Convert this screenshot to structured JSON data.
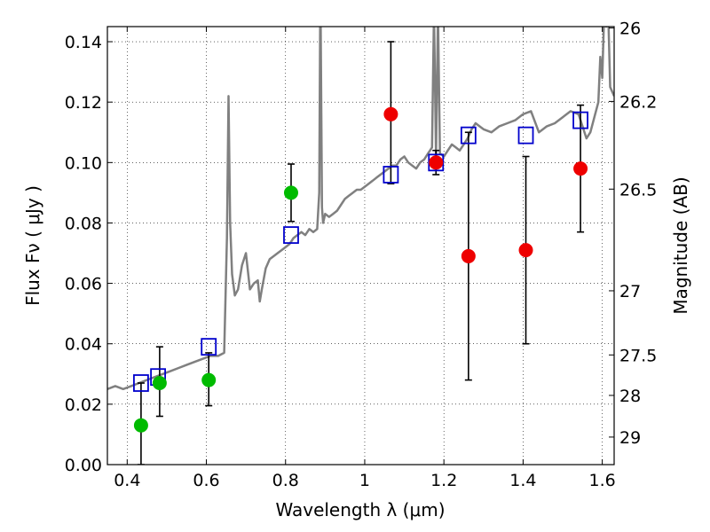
{
  "chart_data": {
    "type": "scatter",
    "xlabel": "Wavelength  λ (μm)",
    "ylabel": "Flux  Fν ( μJy )",
    "y2label": "Magnitude (AB)",
    "xlim": [
      0.35,
      1.63
    ],
    "ylim": [
      0.0,
      0.145
    ],
    "grid": true,
    "x_ticks": [
      0.4,
      0.6,
      0.8,
      1.0,
      1.2,
      1.4,
      1.6
    ],
    "x_tick_labels": [
      "0.4",
      "0.6",
      "0.8",
      "1",
      "1.2",
      "1.4",
      "1.6"
    ],
    "y_ticks": [
      0.0,
      0.02,
      0.04,
      0.06,
      0.08,
      0.1,
      0.12,
      0.14
    ],
    "y_tick_labels": [
      "0.00",
      "0.02",
      "0.04",
      "0.06",
      "0.08",
      "0.10",
      "0.12",
      "0.14"
    ],
    "y2_ticks": [
      "26",
      "26.2",
      "26.5",
      "27",
      "27.5",
      "28",
      "29"
    ],
    "series": [
      {
        "kind": "errorbar-points",
        "marker": "circle",
        "color": "#00bb00",
        "points": [
          {
            "x": 0.435,
            "y": 0.013,
            "yerr_lo": 0.013,
            "yerr_hi": 0.014
          },
          {
            "x": 0.482,
            "y": 0.027,
            "yerr_lo": 0.011,
            "yerr_hi": 0.012
          },
          {
            "x": 0.606,
            "y": 0.028,
            "yerr_lo": 0.0085,
            "yerr_hi": 0.009
          },
          {
            "x": 0.814,
            "y": 0.09,
            "yerr_lo": 0.0095,
            "yerr_hi": 0.0095
          }
        ]
      },
      {
        "kind": "errorbar-points",
        "marker": "circle",
        "color": "#ee0000",
        "points": [
          {
            "x": 1.066,
            "y": 0.116,
            "yerr_lo": 0.023,
            "yerr_hi": 0.024
          },
          {
            "x": 1.18,
            "y": 0.1,
            "yerr_lo": 0.004,
            "yerr_hi": 0.004
          },
          {
            "x": 1.262,
            "y": 0.069,
            "yerr_lo": 0.041,
            "yerr_hi": 0.041
          },
          {
            "x": 1.407,
            "y": 0.071,
            "yerr_lo": 0.031,
            "yerr_hi": 0.031
          },
          {
            "x": 1.545,
            "y": 0.098,
            "yerr_lo": 0.021,
            "yerr_hi": 0.021
          }
        ]
      },
      {
        "kind": "model-photometry",
        "marker": "square",
        "color": "#0000cc",
        "points": [
          {
            "x": 0.435,
            "y": 0.027
          },
          {
            "x": 0.478,
            "y": 0.029
          },
          {
            "x": 0.606,
            "y": 0.039
          },
          {
            "x": 0.814,
            "y": 0.076
          },
          {
            "x": 1.066,
            "y": 0.096
          },
          {
            "x": 1.18,
            "y": 0.1
          },
          {
            "x": 1.262,
            "y": 0.109
          },
          {
            "x": 1.407,
            "y": 0.109
          },
          {
            "x": 1.545,
            "y": 0.114
          }
        ]
      },
      {
        "kind": "spectrum",
        "color": "#808080",
        "x": [
          0.35,
          0.37,
          0.39,
          0.41,
          0.43,
          0.45,
          0.47,
          0.49,
          0.51,
          0.53,
          0.55,
          0.57,
          0.59,
          0.61,
          0.63,
          0.645,
          0.652,
          0.656,
          0.66,
          0.665,
          0.672,
          0.68,
          0.69,
          0.7,
          0.71,
          0.72,
          0.73,
          0.735,
          0.74,
          0.75,
          0.76,
          0.77,
          0.78,
          0.79,
          0.8,
          0.81,
          0.82,
          0.83,
          0.84,
          0.85,
          0.86,
          0.87,
          0.88,
          0.885,
          0.888,
          0.892,
          0.895,
          0.9,
          0.91,
          0.92,
          0.93,
          0.94,
          0.95,
          0.96,
          0.97,
          0.98,
          0.99,
          1.0,
          1.01,
          1.02,
          1.03,
          1.04,
          1.05,
          1.06,
          1.07,
          1.08,
          1.09,
          1.1,
          1.11,
          1.12,
          1.13,
          1.14,
          1.15,
          1.16,
          1.17,
          1.175,
          1.18,
          1.185,
          1.19,
          1.2,
          1.21,
          1.22,
          1.23,
          1.24,
          1.25,
          1.26,
          1.27,
          1.28,
          1.29,
          1.3,
          1.32,
          1.34,
          1.36,
          1.38,
          1.4,
          1.42,
          1.44,
          1.46,
          1.48,
          1.5,
          1.52,
          1.54,
          1.56,
          1.57,
          1.58,
          1.59,
          1.595,
          1.6,
          1.605,
          1.61,
          1.615,
          1.62,
          1.63
        ],
        "y": [
          0.025,
          0.026,
          0.025,
          0.026,
          0.027,
          0.028,
          0.029,
          0.03,
          0.031,
          0.032,
          0.033,
          0.034,
          0.035,
          0.036,
          0.036,
          0.037,
          0.075,
          0.122,
          0.08,
          0.063,
          0.056,
          0.058,
          0.066,
          0.07,
          0.058,
          0.06,
          0.061,
          0.054,
          0.058,
          0.065,
          0.068,
          0.069,
          0.07,
          0.071,
          0.072,
          0.073,
          0.075,
          0.076,
          0.077,
          0.076,
          0.078,
          0.077,
          0.078,
          0.09,
          0.16,
          0.085,
          0.08,
          0.083,
          0.082,
          0.083,
          0.084,
          0.086,
          0.088,
          0.089,
          0.09,
          0.091,
          0.091,
          0.092,
          0.093,
          0.094,
          0.095,
          0.096,
          0.097,
          0.098,
          0.099,
          0.099,
          0.101,
          0.102,
          0.1,
          0.099,
          0.098,
          0.1,
          0.101,
          0.103,
          0.105,
          0.15,
          0.102,
          0.15,
          0.103,
          0.102,
          0.104,
          0.106,
          0.105,
          0.104,
          0.106,
          0.108,
          0.111,
          0.113,
          0.112,
          0.111,
          0.11,
          0.112,
          0.113,
          0.114,
          0.116,
          0.117,
          0.11,
          0.112,
          0.113,
          0.115,
          0.117,
          0.116,
          0.108,
          0.11,
          0.115,
          0.12,
          0.135,
          0.128,
          0.15,
          0.145,
          0.15,
          0.125,
          0.122
        ]
      }
    ]
  }
}
